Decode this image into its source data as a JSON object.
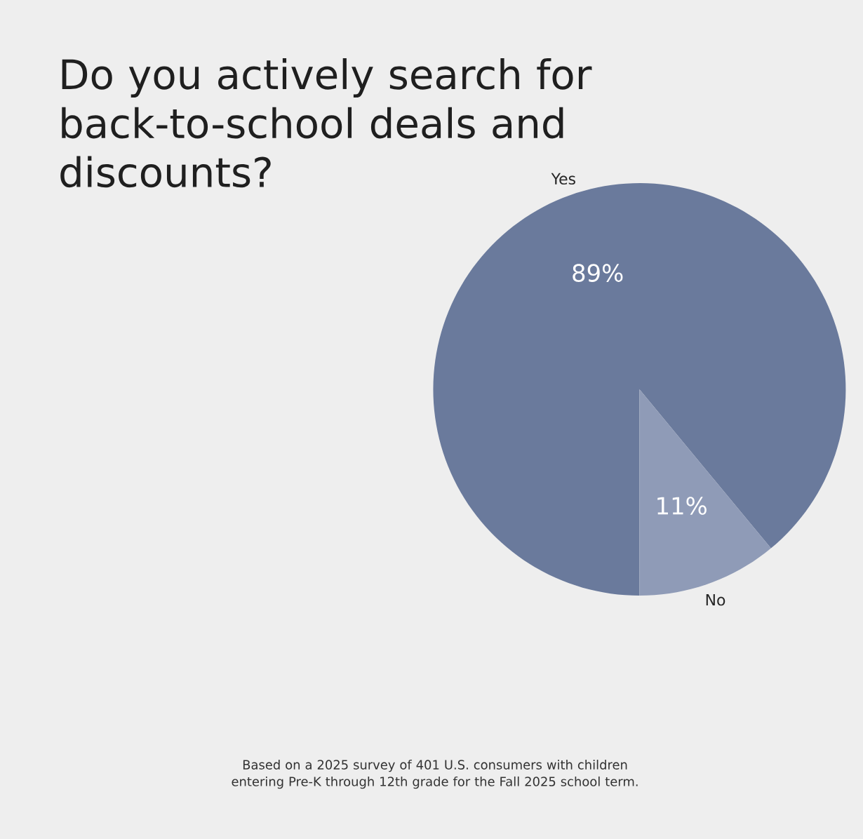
{
  "chart_data": {
    "type": "pie",
    "title": "Do you actively search for back-to-school deals and discounts?",
    "categories": [
      "Yes",
      "No"
    ],
    "values": [
      89,
      11
    ],
    "colors": [
      "#6a7a9c",
      "#8f9bb7"
    ],
    "value_labels": [
      "89%",
      "11%"
    ],
    "annotations": [
      "Based on a 2025 survey of 401 U.S. consumers with children entering Pre-K through 12th grade for the Fall 2025 school term."
    ]
  }
}
